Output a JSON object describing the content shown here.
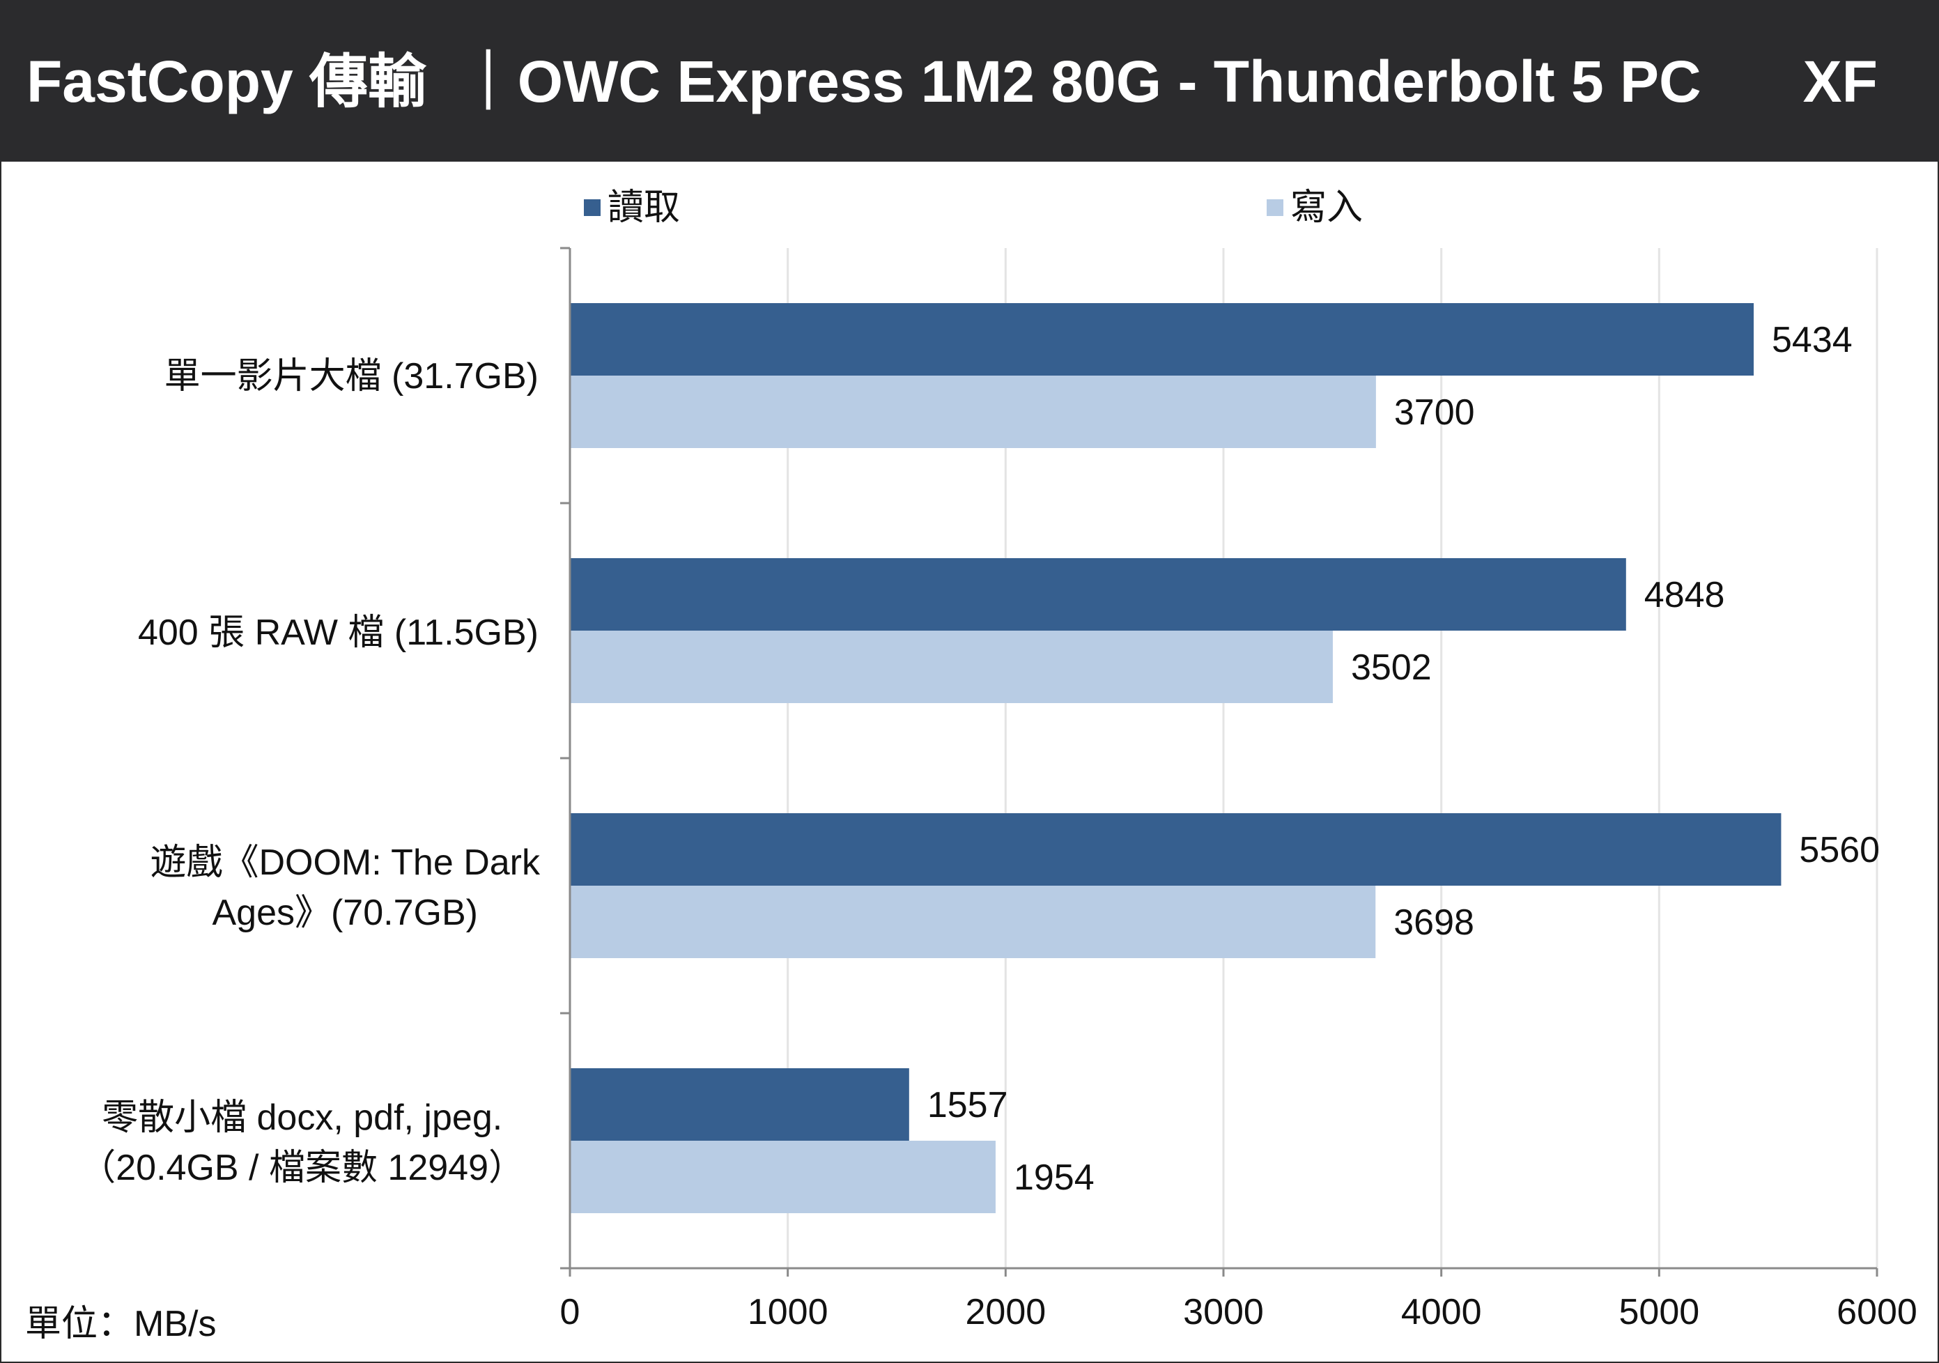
{
  "header": {
    "title": "FastCopy 傳輸  ｜OWC Express 1M2 80G - Thunderbolt 5 PC",
    "brand": "XF"
  },
  "unit_label": "單位：MB/s",
  "colors": {
    "read": "#365f8f",
    "write": "#b8cce4",
    "header_bg": "#2b2b2d",
    "grid": "#e4e4e4",
    "axis": "#8a8a8a"
  },
  "category_labels": [
    [
      "單一影片大檔 (31.7GB)"
    ],
    [
      "400 張 RAW 檔 (11.5GB)"
    ],
    [
      "遊戲《DOOM: The Dark",
      "Ages》(70.7GB)"
    ],
    [
      "零散小檔 docx, pdf, jpeg.",
      "（20.4GB / 檔案數 12949）"
    ]
  ],
  "chart_data": {
    "type": "bar",
    "orientation": "horizontal",
    "categories": [
      "單一影片大檔 (31.7GB)",
      "400 張 RAW 檔 (11.5GB)",
      "遊戲《DOOM: The Dark Ages》(70.7GB)",
      "零散小檔 docx, pdf, jpeg.（20.4GB / 檔案數 12949）"
    ],
    "series": [
      {
        "name": "讀取",
        "values": [
          5434,
          4848,
          5560,
          1557
        ]
      },
      {
        "name": "寫入",
        "values": [
          3700,
          3502,
          3698,
          1954
        ]
      }
    ],
    "xlim": [
      0,
      6000
    ],
    "xticks": [
      0,
      1000,
      2000,
      3000,
      4000,
      5000,
      6000
    ],
    "grid": "vertical",
    "legend_position": "top",
    "data_labels": true
  }
}
